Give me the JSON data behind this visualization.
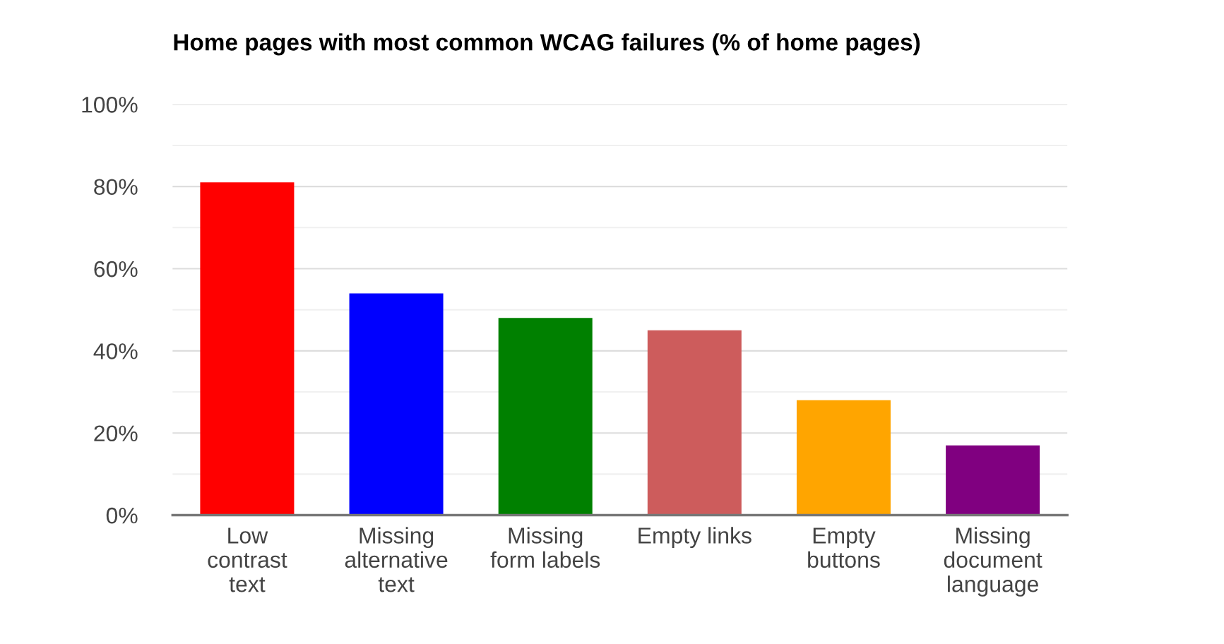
{
  "chart_data": {
    "type": "bar",
    "title": "Home pages with most common WCAG failures (% of home pages)",
    "categories": [
      "Low contrast text",
      "Missing alternative text",
      "Missing form labels",
      "Empty links",
      "Empty buttons",
      "Missing document language"
    ],
    "values": [
      81,
      54,
      48,
      45,
      28,
      17
    ],
    "colors": [
      "#ff0000",
      "#0000ff",
      "#008000",
      "#cd5c5c",
      "#ffa500",
      "#800080"
    ],
    "ylim": [
      0,
      100
    ],
    "yticks": [
      {
        "value": 0,
        "label": "0%"
      },
      {
        "value": 10,
        "label": null
      },
      {
        "value": 20,
        "label": "20%"
      },
      {
        "value": 30,
        "label": null
      },
      {
        "value": 40,
        "label": "40%"
      },
      {
        "value": 50,
        "label": null
      },
      {
        "value": 60,
        "label": "60%"
      },
      {
        "value": 70,
        "label": null
      },
      {
        "value": 80,
        "label": "80%"
      },
      {
        "value": 90,
        "label": null
      },
      {
        "value": 100,
        "label": "100%"
      }
    ],
    "grid": "y",
    "legend": false
  }
}
